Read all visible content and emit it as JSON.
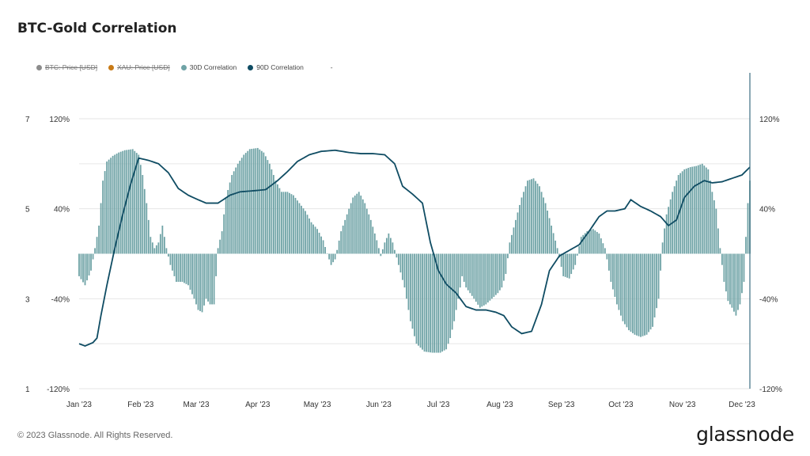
{
  "title": "BTC-Gold Correlation",
  "legend": [
    {
      "label": "BTC: Price [USD]",
      "color": "#8c8c8c",
      "disabled": true
    },
    {
      "label": "XAU: Price [USD]",
      "color": "#c87a16",
      "disabled": true
    },
    {
      "label": "30D Correlation",
      "color": "#6fa3a6",
      "disabled": false
    },
    {
      "label": "90D Correlation",
      "color": "#0f4c63",
      "disabled": false
    },
    {
      "label": "-",
      "color": "",
      "disabled": false
    }
  ],
  "footer": "© 2023 Glassnode. All Rights Reserved.",
  "brand": "glassnode",
  "colors": {
    "bars": "#6fa3a6",
    "line": "#0f4c63",
    "grid": "#e6e6e6",
    "right_axis": "#3d6f82"
  },
  "chart_data": {
    "type": "bar",
    "title": "BTC-Gold Correlation",
    "x_type": "date",
    "x_range": [
      "2023-01-01",
      "2023-12-05"
    ],
    "x_ticks": [
      {
        "date": "2023-01-01",
        "label": "Jan '23"
      },
      {
        "date": "2023-02-01",
        "label": "Feb '23"
      },
      {
        "date": "2023-03-01",
        "label": "Mar '23"
      },
      {
        "date": "2023-04-01",
        "label": "Apr '23"
      },
      {
        "date": "2023-05-01",
        "label": "May '23"
      },
      {
        "date": "2023-06-01",
        "label": "Jun '23"
      },
      {
        "date": "2023-07-01",
        "label": "Jul '23"
      },
      {
        "date": "2023-08-01",
        "label": "Aug '23"
      },
      {
        "date": "2023-09-01",
        "label": "Sep '23"
      },
      {
        "date": "2023-10-01",
        "label": "Oct '23"
      },
      {
        "date": "2023-11-01",
        "label": "Nov '23"
      },
      {
        "date": "2023-12-01",
        "label": "Dec '23"
      }
    ],
    "y_left": {
      "range": [
        1,
        7
      ],
      "ticks": [
        "7",
        "5",
        "3",
        "1"
      ],
      "tick_values": [
        7,
        5,
        3,
        1
      ]
    },
    "y_correlation": {
      "range": [
        -120,
        120
      ],
      "ticks": [
        "120%",
        "40%",
        "-40%",
        "-120%"
      ],
      "tick_values": [
        120,
        40,
        -40,
        -120
      ],
      "unit": "%"
    },
    "grid": true,
    "legend_position": "top-left",
    "series": [
      {
        "name": "30D Correlation",
        "type": "bar",
        "points": [
          [
            "2023-01-01",
            -20
          ],
          [
            "2023-01-04",
            -28
          ],
          [
            "2023-01-07",
            -15
          ],
          [
            "2023-01-09",
            5
          ],
          [
            "2023-01-11",
            25
          ],
          [
            "2023-01-13",
            65
          ],
          [
            "2023-01-15",
            82
          ],
          [
            "2023-01-18",
            87
          ],
          [
            "2023-01-21",
            90
          ],
          [
            "2023-01-24",
            92
          ],
          [
            "2023-01-28",
            93
          ],
          [
            "2023-01-31",
            88
          ],
          [
            "2023-02-02",
            70
          ],
          [
            "2023-02-04",
            45
          ],
          [
            "2023-02-06",
            15
          ],
          [
            "2023-02-08",
            5
          ],
          [
            "2023-02-10",
            10
          ],
          [
            "2023-02-12",
            25
          ],
          [
            "2023-02-14",
            5
          ],
          [
            "2023-02-16",
            -10
          ],
          [
            "2023-02-19",
            -25
          ],
          [
            "2023-02-22",
            -25
          ],
          [
            "2023-02-25",
            -28
          ],
          [
            "2023-02-28",
            -40
          ],
          [
            "2023-03-02",
            -50
          ],
          [
            "2023-03-04",
            -52
          ],
          [
            "2023-03-06",
            -40
          ],
          [
            "2023-03-08",
            -45
          ],
          [
            "2023-03-10",
            -45
          ],
          [
            "2023-03-12",
            5
          ],
          [
            "2023-03-14",
            20
          ],
          [
            "2023-03-16",
            50
          ],
          [
            "2023-03-19",
            70
          ],
          [
            "2023-03-22",
            80
          ],
          [
            "2023-03-25",
            88
          ],
          [
            "2023-03-28",
            93
          ],
          [
            "2023-04-01",
            94
          ],
          [
            "2023-04-04",
            90
          ],
          [
            "2023-04-07",
            80
          ],
          [
            "2023-04-10",
            65
          ],
          [
            "2023-04-13",
            55
          ],
          [
            "2023-04-16",
            55
          ],
          [
            "2023-04-19",
            52
          ],
          [
            "2023-04-22",
            45
          ],
          [
            "2023-04-25",
            38
          ],
          [
            "2023-04-28",
            28
          ],
          [
            "2023-05-01",
            22
          ],
          [
            "2023-05-04",
            12
          ],
          [
            "2023-05-06",
            0
          ],
          [
            "2023-05-08",
            -10
          ],
          [
            "2023-05-10",
            -5
          ],
          [
            "2023-05-13",
            20
          ],
          [
            "2023-05-16",
            35
          ],
          [
            "2023-05-19",
            50
          ],
          [
            "2023-05-22",
            55
          ],
          [
            "2023-05-25",
            45
          ],
          [
            "2023-05-28",
            30
          ],
          [
            "2023-05-31",
            12
          ],
          [
            "2023-06-02",
            -2
          ],
          [
            "2023-06-04",
            10
          ],
          [
            "2023-06-06",
            18
          ],
          [
            "2023-06-08",
            10
          ],
          [
            "2023-06-11",
            -10
          ],
          [
            "2023-06-14",
            -30
          ],
          [
            "2023-06-17",
            -60
          ],
          [
            "2023-06-20",
            -80
          ],
          [
            "2023-06-24",
            -87
          ],
          [
            "2023-06-28",
            -88
          ],
          [
            "2023-07-02",
            -88
          ],
          [
            "2023-07-05",
            -85
          ],
          [
            "2023-07-07",
            -75
          ],
          [
            "2023-07-09",
            -60
          ],
          [
            "2023-07-11",
            -40
          ],
          [
            "2023-07-13",
            -20
          ],
          [
            "2023-07-15",
            -30
          ],
          [
            "2023-07-17",
            -35
          ],
          [
            "2023-07-19",
            -40
          ],
          [
            "2023-07-22",
            -48
          ],
          [
            "2023-07-25",
            -45
          ],
          [
            "2023-07-28",
            -40
          ],
          [
            "2023-07-31",
            -35
          ],
          [
            "2023-08-02",
            -30
          ],
          [
            "2023-08-04",
            -18
          ],
          [
            "2023-08-06",
            10
          ],
          [
            "2023-08-09",
            30
          ],
          [
            "2023-08-12",
            50
          ],
          [
            "2023-08-15",
            65
          ],
          [
            "2023-08-18",
            67
          ],
          [
            "2023-08-21",
            60
          ],
          [
            "2023-08-24",
            45
          ],
          [
            "2023-08-27",
            25
          ],
          [
            "2023-08-30",
            5
          ],
          [
            "2023-09-02",
            -20
          ],
          [
            "2023-09-05",
            -22
          ],
          [
            "2023-09-08",
            -10
          ],
          [
            "2023-09-11",
            15
          ],
          [
            "2023-09-14",
            20
          ],
          [
            "2023-09-17",
            22
          ],
          [
            "2023-09-20",
            18
          ],
          [
            "2023-09-23",
            5
          ],
          [
            "2023-09-26",
            -25
          ],
          [
            "2023-09-29",
            -45
          ],
          [
            "2023-10-02",
            -60
          ],
          [
            "2023-10-05",
            -68
          ],
          [
            "2023-10-08",
            -72
          ],
          [
            "2023-10-11",
            -74
          ],
          [
            "2023-10-14",
            -72
          ],
          [
            "2023-10-17",
            -65
          ],
          [
            "2023-10-20",
            -40
          ],
          [
            "2023-10-22",
            10
          ],
          [
            "2023-10-24",
            35
          ],
          [
            "2023-10-27",
            55
          ],
          [
            "2023-10-30",
            70
          ],
          [
            "2023-11-02",
            75
          ],
          [
            "2023-11-05",
            77
          ],
          [
            "2023-11-08",
            78
          ],
          [
            "2023-11-11",
            80
          ],
          [
            "2023-11-14",
            75
          ],
          [
            "2023-11-16",
            55
          ],
          [
            "2023-11-18",
            40
          ],
          [
            "2023-11-20",
            5
          ],
          [
            "2023-11-22",
            -25
          ],
          [
            "2023-11-24",
            -42
          ],
          [
            "2023-11-26",
            -48
          ],
          [
            "2023-11-28",
            -55
          ],
          [
            "2023-11-30",
            -45
          ],
          [
            "2023-12-02",
            -25
          ],
          [
            "2023-12-03",
            15
          ],
          [
            "2023-12-04",
            45
          ],
          [
            "2023-12-05",
            65
          ]
        ]
      },
      {
        "name": "90D Correlation",
        "type": "line",
        "points": [
          [
            "2023-01-01",
            -80
          ],
          [
            "2023-01-04",
            -82
          ],
          [
            "2023-01-08",
            -79
          ],
          [
            "2023-01-10",
            -75
          ],
          [
            "2023-01-12",
            -55
          ],
          [
            "2023-01-15",
            -28
          ],
          [
            "2023-01-19",
            5
          ],
          [
            "2023-01-23",
            35
          ],
          [
            "2023-01-27",
            62
          ],
          [
            "2023-01-31",
            85
          ],
          [
            "2023-02-05",
            83
          ],
          [
            "2023-02-10",
            80
          ],
          [
            "2023-02-15",
            72
          ],
          [
            "2023-02-20",
            58
          ],
          [
            "2023-02-25",
            52
          ],
          [
            "2023-03-02",
            48
          ],
          [
            "2023-03-06",
            45
          ],
          [
            "2023-03-12",
            45
          ],
          [
            "2023-03-18",
            52
          ],
          [
            "2023-03-23",
            55
          ],
          [
            "2023-03-30",
            56
          ],
          [
            "2023-04-05",
            57
          ],
          [
            "2023-04-11",
            65
          ],
          [
            "2023-04-16",
            73
          ],
          [
            "2023-04-21",
            82
          ],
          [
            "2023-04-27",
            88
          ],
          [
            "2023-05-03",
            91
          ],
          [
            "2023-05-10",
            92
          ],
          [
            "2023-05-17",
            90
          ],
          [
            "2023-05-23",
            89
          ],
          [
            "2023-05-29",
            89
          ],
          [
            "2023-06-04",
            88
          ],
          [
            "2023-06-09",
            80
          ],
          [
            "2023-06-13",
            60
          ],
          [
            "2023-06-18",
            53
          ],
          [
            "2023-06-23",
            45
          ],
          [
            "2023-06-27",
            10
          ],
          [
            "2023-07-01",
            -15
          ],
          [
            "2023-07-05",
            -27
          ],
          [
            "2023-07-10",
            -35
          ],
          [
            "2023-07-15",
            -47
          ],
          [
            "2023-07-20",
            -50
          ],
          [
            "2023-07-25",
            -50
          ],
          [
            "2023-07-30",
            -52
          ],
          [
            "2023-08-03",
            -55
          ],
          [
            "2023-08-07",
            -65
          ],
          [
            "2023-08-12",
            -71
          ],
          [
            "2023-08-17",
            -69
          ],
          [
            "2023-08-22",
            -45
          ],
          [
            "2023-08-26",
            -15
          ],
          [
            "2023-08-31",
            -2
          ],
          [
            "2023-09-05",
            3
          ],
          [
            "2023-09-10",
            8
          ],
          [
            "2023-09-15",
            20
          ],
          [
            "2023-09-20",
            33
          ],
          [
            "2023-09-24",
            38
          ],
          [
            "2023-09-28",
            38
          ],
          [
            "2023-10-03",
            40
          ],
          [
            "2023-10-06",
            48
          ],
          [
            "2023-10-11",
            42
          ],
          [
            "2023-10-16",
            38
          ],
          [
            "2023-10-21",
            33
          ],
          [
            "2023-10-25",
            25
          ],
          [
            "2023-10-29",
            30
          ],
          [
            "2023-11-02",
            50
          ],
          [
            "2023-11-07",
            60
          ],
          [
            "2023-11-12",
            65
          ],
          [
            "2023-11-16",
            63
          ],
          [
            "2023-11-21",
            64
          ],
          [
            "2023-11-26",
            67
          ],
          [
            "2023-12-01",
            70
          ],
          [
            "2023-12-05",
            77
          ]
        ]
      }
    ]
  }
}
